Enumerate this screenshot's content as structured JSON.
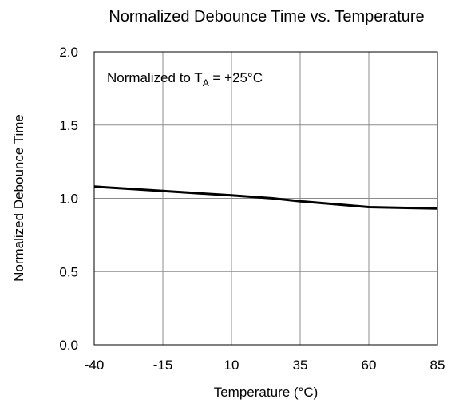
{
  "chart_data": {
    "type": "line",
    "title": "Normalized Debounce Time vs. Temperature",
    "xlabel": "Temperature (°C)",
    "ylabel": "Normalized Debounce Time",
    "xlim": [
      -40,
      85
    ],
    "ylim": [
      0,
      2
    ],
    "xticks": [
      "-40",
      "-15",
      "10",
      "35",
      "60",
      "85"
    ],
    "yticks": [
      "0.0",
      "0.5",
      "1.0",
      "1.5",
      "2.0"
    ],
    "grid": true,
    "annotation": {
      "prefix": "Normalized to T",
      "subscript": "A",
      "suffix": " = +25°C"
    },
    "series": [
      {
        "color": "#000000",
        "x": [
          -40,
          -15,
          10,
          25,
          35,
          60,
          85
        ],
        "y": [
          1.08,
          1.05,
          1.02,
          1.0,
          0.98,
          0.94,
          0.93
        ]
      }
    ]
  }
}
